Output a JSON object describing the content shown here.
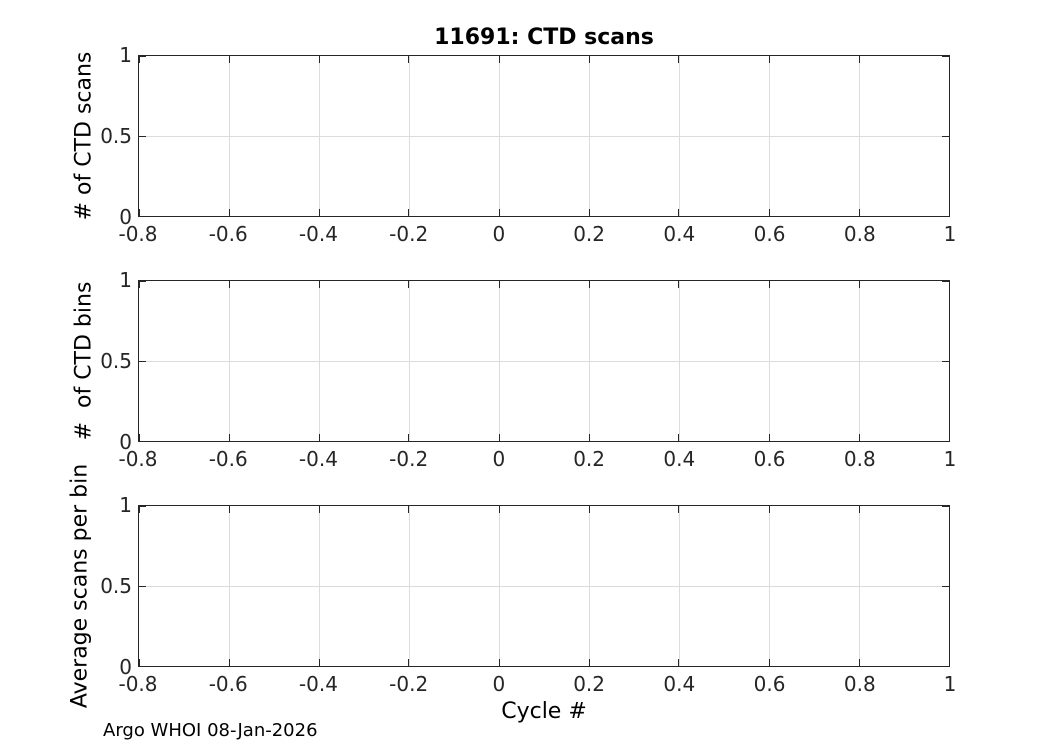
{
  "figure": {
    "footer": "Argo WHOI 08-Jan-2026",
    "background": "#ffffff"
  },
  "colors": {
    "axis_box": "#262626",
    "grid": "#dcdcdc",
    "tick_text": "#262626",
    "label_text": "#000000"
  },
  "chart_data": [
    {
      "type": "line",
      "title": "11691: CTD scans",
      "xlabel": "",
      "ylabel": "# of CTD scans",
      "xlim": [
        -0.8,
        1
      ],
      "ylim": [
        0,
        1
      ],
      "x_ticks": [
        -0.8,
        -0.6,
        -0.4,
        -0.2,
        0,
        0.2,
        0.4,
        0.6,
        0.8,
        1
      ],
      "x_tick_labels": [
        "-0.8",
        "-0.6",
        "-0.4",
        "-0.2",
        "0",
        "0.2",
        "0.4",
        "0.6",
        "0.8",
        "1"
      ],
      "y_ticks": [
        0,
        0.5,
        1
      ],
      "y_tick_labels": [
        "0",
        "0.5",
        "1"
      ],
      "grid": true,
      "box": true,
      "legend": null,
      "series": []
    },
    {
      "type": "line",
      "title": "",
      "xlabel": "",
      "ylabel": "#  of CTD bins",
      "xlim": [
        -0.8,
        1
      ],
      "ylim": [
        0,
        1
      ],
      "x_ticks": [
        -0.8,
        -0.6,
        -0.4,
        -0.2,
        0,
        0.2,
        0.4,
        0.6,
        0.8,
        1
      ],
      "x_tick_labels": [
        "-0.8",
        "-0.6",
        "-0.4",
        "-0.2",
        "0",
        "0.2",
        "0.4",
        "0.6",
        "0.8",
        "1"
      ],
      "y_ticks": [
        0,
        0.5,
        1
      ],
      "y_tick_labels": [
        "0",
        "0.5",
        "1"
      ],
      "grid": true,
      "box": true,
      "legend": null,
      "series": []
    },
    {
      "type": "line",
      "title": "",
      "xlabel": "Cycle #",
      "ylabel": "Average scans per bin",
      "xlim": [
        -0.8,
        1
      ],
      "ylim": [
        0,
        1
      ],
      "x_ticks": [
        -0.8,
        -0.6,
        -0.4,
        -0.2,
        0,
        0.2,
        0.4,
        0.6,
        0.8,
        1
      ],
      "x_tick_labels": [
        "-0.8",
        "-0.6",
        "-0.4",
        "-0.2",
        "0",
        "0.2",
        "0.4",
        "0.6",
        "0.8",
        "1"
      ],
      "y_ticks": [
        0,
        0.5,
        1
      ],
      "y_tick_labels": [
        "0",
        "0.5",
        "1"
      ],
      "grid": true,
      "box": true,
      "legend": null,
      "series": []
    }
  ]
}
